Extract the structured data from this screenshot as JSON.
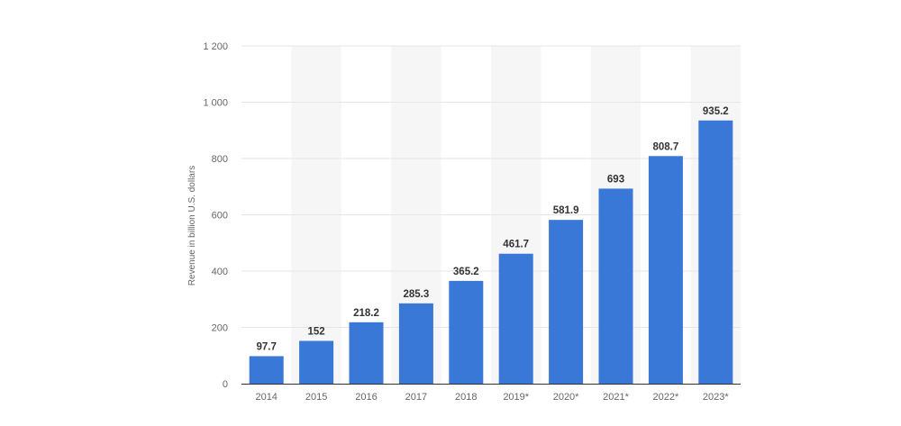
{
  "chart_data": {
    "type": "bar",
    "categories": [
      "2014",
      "2015",
      "2016",
      "2017",
      "2018",
      "2019*",
      "2020*",
      "2021*",
      "2022*",
      "2023*"
    ],
    "values": [
      97.7,
      152,
      218.2,
      285.3,
      365.2,
      461.7,
      581.9,
      693,
      808.7,
      935.2
    ],
    "value_labels": [
      "97.7",
      "152",
      "218.2",
      "285.3",
      "365.2",
      "461.7",
      "581.9",
      "693",
      "808.7",
      "935.2"
    ],
    "ylabel": "Revenue in billion U.S. dollars",
    "ylim": [
      0,
      1200
    ],
    "yticks": [
      0,
      200,
      400,
      600,
      800,
      1000,
      1200
    ],
    "ytick_labels": [
      "0",
      "200",
      "400",
      "600",
      "800",
      "1 000",
      "1 200"
    ],
    "grid": true,
    "bar_color": "#3a78d8",
    "band_color": "#f6f6f6"
  }
}
